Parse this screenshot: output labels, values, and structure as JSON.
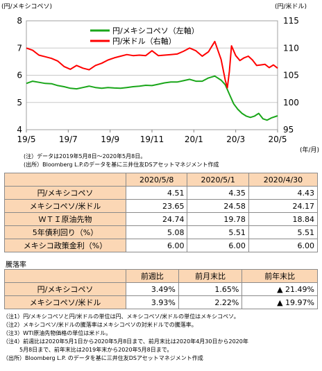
{
  "chart_data": {
    "type": "line",
    "left_axis_title": "(円/メキシコペソ)",
    "right_axis_title": "(円/米ドル)",
    "x_unit_label": "(年/月)",
    "x_tick_labels": [
      "19/5",
      "19/7",
      "19/9",
      "19/11",
      "20/1",
      "20/3",
      "20/5"
    ],
    "x_ticks_month": [
      0,
      2,
      4,
      6,
      8,
      10,
      12
    ],
    "y_left_ticks": [
      4,
      5,
      6,
      7,
      8
    ],
    "y_left_lim": [
      4,
      8
    ],
    "y_right_ticks": [
      95,
      100,
      105,
      110,
      115
    ],
    "y_right_lim": [
      95,
      115
    ],
    "grid": true,
    "legend_position": "top-center",
    "series": [
      {
        "name": "円/メキシコペソ（左軸）",
        "axis": "left",
        "color": "#19a619",
        "x": [
          0,
          0.3,
          0.6,
          0.9,
          1.2,
          1.5,
          1.8,
          2.1,
          2.4,
          2.7,
          3.0,
          3.3,
          3.6,
          3.9,
          4.2,
          4.5,
          4.8,
          5.1,
          5.4,
          5.7,
          6.0,
          6.3,
          6.6,
          6.9,
          7.2,
          7.5,
          7.8,
          8.1,
          8.4,
          8.7,
          9.0,
          9.3,
          9.5,
          9.7,
          9.9,
          10.1,
          10.3,
          10.5,
          10.7,
          10.9,
          11.1,
          11.3,
          11.5,
          11.7,
          12.0
        ],
        "values": [
          5.7,
          5.78,
          5.74,
          5.7,
          5.69,
          5.62,
          5.58,
          5.52,
          5.5,
          5.55,
          5.6,
          5.55,
          5.52,
          5.55,
          5.53,
          5.52,
          5.55,
          5.58,
          5.6,
          5.63,
          5.62,
          5.67,
          5.72,
          5.75,
          5.75,
          5.8,
          5.85,
          5.78,
          5.78,
          5.9,
          5.97,
          5.82,
          5.65,
          5.3,
          4.95,
          4.75,
          4.6,
          4.5,
          4.45,
          4.5,
          4.6,
          4.4,
          4.35,
          4.43,
          4.51
        ]
      },
      {
        "name": "円/米ドル（右軸）",
        "axis": "right",
        "color": "#ff0000",
        "x": [
          0,
          0.3,
          0.6,
          0.9,
          1.2,
          1.5,
          1.8,
          2.1,
          2.4,
          2.7,
          3.0,
          3.3,
          3.6,
          3.9,
          4.2,
          4.5,
          4.8,
          5.1,
          5.4,
          5.7,
          6.0,
          6.3,
          6.6,
          6.9,
          7.2,
          7.5,
          7.8,
          8.1,
          8.4,
          8.7,
          9.0,
          9.3,
          9.5,
          9.6,
          9.7,
          9.8,
          10.0,
          10.2,
          10.4,
          10.6,
          10.8,
          11.0,
          11.2,
          11.4,
          11.6,
          11.8,
          12.0
        ],
        "values": [
          110.0,
          109.6,
          108.7,
          108.4,
          108.1,
          107.6,
          106.6,
          106.1,
          106.8,
          106.3,
          106.0,
          106.8,
          107.2,
          107.8,
          108.2,
          108.5,
          108.8,
          108.6,
          108.7,
          108.6,
          109.5,
          108.6,
          108.7,
          108.8,
          108.9,
          109.4,
          110.0,
          109.5,
          108.5,
          109.3,
          111.2,
          107.9,
          104.1,
          102.7,
          105.8,
          110.4,
          108.6,
          107.7,
          108.2,
          108.5,
          107.8,
          106.8,
          106.9,
          107.0,
          106.4,
          106.9,
          106.3
        ]
      }
    ]
  },
  "notes_top": [
    "(注）データは2019年5月8日～2020年5月8日。",
    "(出所）Bloomberg L.P.のデータを基に三井住友DSアセットマネジメント作成"
  ],
  "table1": {
    "headers": [
      "",
      "2020/5/8",
      "2020/5/1",
      "2020/4/30"
    ],
    "rows": [
      {
        "label": "円/メキシコペソ",
        "values": [
          "4.51",
          "4.35",
          "4.43"
        ]
      },
      {
        "label": "メキシコペソ/米ドル",
        "values": [
          "23.65",
          "24.58",
          "24.17"
        ]
      },
      {
        "label": "ＷＴＩ原油先物",
        "values": [
          "24.74",
          "19.78",
          "18.84"
        ]
      },
      {
        "label": "5年債利回り（%）",
        "values": [
          "5.08",
          "5.51",
          "5.51"
        ]
      },
      {
        "label": "メキシコ政策金利（%）",
        "values": [
          "6.00",
          "6.00",
          "6.00"
        ]
      }
    ]
  },
  "section_label": "騰落率",
  "table2": {
    "headers": [
      "",
      "前週比",
      "前月末比",
      "前年末比"
    ],
    "rows": [
      {
        "label": "円/メキシコペソ",
        "values": [
          "3.49%",
          "1.65%",
          "▲ 21.49%"
        ]
      },
      {
        "label": "メキシコペソ/米ドル",
        "values": [
          "3.93%",
          "2.22%",
          "▲ 19.97%"
        ]
      }
    ]
  },
  "notes_bottom": [
    "（注1）円/メキシコペソと円/米ドルの単位は円、メキシコペソ/米ドルの単位はメキシコペソ。",
    "（注2）メキシコペソ/米ドルの騰落率はメキシコペソの対米ドルでの騰落率。",
    "（注3）WTI原油先物価格の単位は米ドル。",
    "（注4）前週比は2020年5月1日から2020年5月8日まで、前月末比は2020年4月30日から2020年",
    "　　　5月8日まで、前年末比は2019年末から2020年5月8日まで。",
    "（出所）Bloomberg L.P. のデータを基に三井住友DSアセットマネジメント作成"
  ]
}
